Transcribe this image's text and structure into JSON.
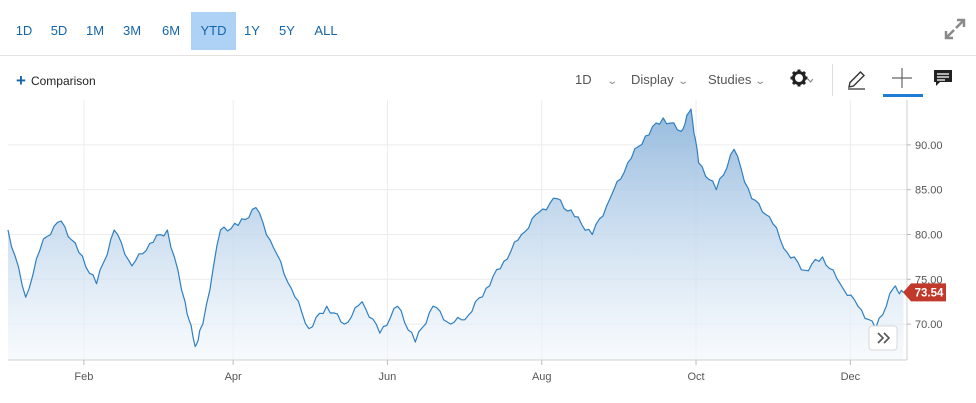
{
  "range_buttons": [
    {
      "label": "1D"
    },
    {
      "label": "5D"
    },
    {
      "label": "1M"
    },
    {
      "label": "3M"
    },
    {
      "label": "6M"
    },
    {
      "label": "YTD"
    },
    {
      "label": "1Y"
    },
    {
      "label": "5Y"
    },
    {
      "label": "ALL"
    }
  ],
  "active_range": "YTD",
  "toolbar": {
    "comparison_label": "Comparison",
    "interval_label": "1D",
    "display_label": "Display",
    "studies_label": "Studies"
  },
  "icons": {
    "expand": "expand-icon",
    "settings": "gear-icon",
    "draw": "pencil-icon",
    "crosshair": "crosshair-icon",
    "comments": "comment-icon",
    "scroll": "double-chevron-right-icon"
  },
  "colors": {
    "accent": "#1565a8",
    "line": "#2f7fc1",
    "fill_top": "#8fb6dc",
    "fill_bottom": "#f2f7fc",
    "price_badge": "#c0392b"
  },
  "chart_data": {
    "type": "area",
    "title": "",
    "xlabel": "",
    "ylabel": "",
    "x_ticks": [
      "Feb",
      "Apr",
      "Jun",
      "Aug",
      "Oct",
      "Dec"
    ],
    "y_ticks": [
      "70.00",
      "75.00",
      "80.00",
      "85.00",
      "90.00"
    ],
    "ylim": [
      66,
      95
    ],
    "y_axis_position": "right",
    "grid": true,
    "current_price": "73.54",
    "series": [
      {
        "x": [
          "Jan 2",
          "Jan 9",
          "Jan 16",
          "Jan 23",
          "Jan 30",
          "Feb 6",
          "Feb 13",
          "Feb 20",
          "Feb 27",
          "Mar 6",
          "Mar 13",
          "Mar 17",
          "Mar 20",
          "Mar 27",
          "Apr 3",
          "Apr 10",
          "Apr 17",
          "Apr 24",
          "May 1",
          "May 8",
          "May 15",
          "May 22",
          "May 29",
          "Jun 5",
          "Jun 12",
          "Jun 19",
          "Jun 26",
          "Jul 3",
          "Jul 10",
          "Jul 17",
          "Jul 24",
          "Jul 31",
          "Aug 7",
          "Aug 14",
          "Aug 21",
          "Aug 28",
          "Sep 4",
          "Sep 11",
          "Sep 18",
          "Sep 25",
          "Sep 29",
          "Oct 2",
          "Oct 9",
          "Oct 16",
          "Oct 23",
          "Oct 30",
          "Nov 6",
          "Nov 13",
          "Nov 20",
          "Nov 27",
          "Dec 4",
          "Dec 11",
          "Dec 18",
          "Dec 22"
        ],
        "values": [
          80.5,
          73.0,
          79.5,
          81.5,
          78.0,
          74.5,
          80.5,
          76.5,
          79.0,
          80.5,
          72.5,
          67.5,
          70.0,
          80.5,
          81.0,
          83.0,
          78.5,
          74.0,
          69.5,
          72.0,
          70.0,
          72.5,
          69.0,
          72.0,
          68.0,
          72.0,
          70.0,
          71.0,
          74.0,
          77.0,
          80.0,
          82.5,
          84.0,
          82.0,
          80.0,
          84.0,
          88.0,
          91.0,
          93.0,
          91.5,
          94.0,
          88.0,
          85.0,
          89.5,
          84.0,
          82.0,
          78.0,
          76.0,
          77.5,
          74.5,
          72.0,
          69.5,
          74.0,
          73.54
        ]
      }
    ]
  }
}
